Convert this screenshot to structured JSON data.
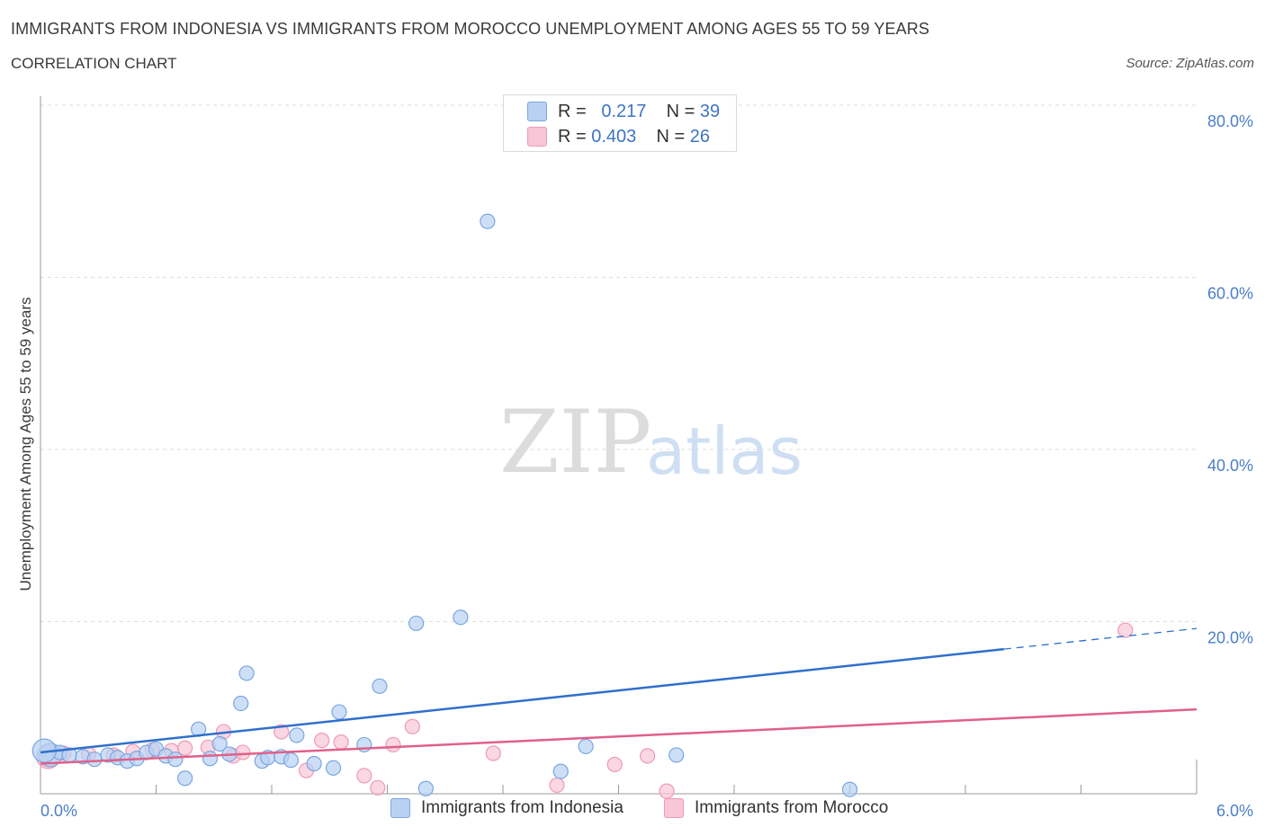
{
  "title": "IMMIGRANTS FROM INDONESIA VS IMMIGRANTS FROM MOROCCO UNEMPLOYMENT AMONG AGES 55 TO 59 YEARS",
  "subtitle": "CORRELATION CHART",
  "source": "Source: ZipAtlas.com",
  "watermark": {
    "zip": "ZIP",
    "atlas": "atlas"
  },
  "legend": {
    "r_label": "R =",
    "n_label": "N =",
    "rows": [
      {
        "r": "0.217",
        "n": "39"
      },
      {
        "r": "0.403",
        "n": "26"
      }
    ]
  },
  "colors": {
    "indonesia_fill": "#b8d1f3",
    "indonesia_stroke": "#7aa6e0",
    "indonesia_line": "#2f6fcd",
    "morocco_fill": "#f8c6d6",
    "morocco_stroke": "#ee9ab5",
    "morocco_line": "#e0608a"
  },
  "chart_data": {
    "type": "scatter",
    "title": "IMMIGRANTS FROM INDONESIA VS IMMIGRANTS FROM MOROCCO UNEMPLOYMENT AMONG AGES 55 TO 59 YEARS",
    "xlabel": "",
    "ylabel": "Unemployment Among Ages 55 to 59 years",
    "xlim": [
      0,
      6
    ],
    "ylim": [
      0,
      80
    ],
    "x_tick_labels": [
      "0.0%",
      "6.0%"
    ],
    "y_ticks": [
      20,
      40,
      60,
      80
    ],
    "y_tick_labels": [
      "20.0%",
      "40.0%",
      "60.0%",
      "80.0%"
    ],
    "grid": true,
    "series": [
      {
        "name": "Immigrants from Indonesia",
        "points": [
          [
            0.05,
            4.5
          ],
          [
            0.1,
            4.8
          ],
          [
            0.15,
            4.5
          ],
          [
            0.22,
            4.3
          ],
          [
            0.28,
            4.0
          ],
          [
            0.35,
            4.5
          ],
          [
            0.4,
            4.2
          ],
          [
            0.45,
            3.8
          ],
          [
            0.5,
            4.1
          ],
          [
            0.55,
            4.8
          ],
          [
            0.6,
            5.2
          ],
          [
            0.65,
            4.4
          ],
          [
            0.7,
            4.0
          ],
          [
            0.75,
            1.8
          ],
          [
            0.82,
            7.5
          ],
          [
            0.88,
            4.1
          ],
          [
            0.93,
            5.8
          ],
          [
            0.98,
            4.6
          ],
          [
            1.04,
            10.5
          ],
          [
            1.07,
            14.0
          ],
          [
            1.15,
            3.8
          ],
          [
            1.18,
            4.2
          ],
          [
            1.25,
            4.3
          ],
          [
            1.3,
            3.9
          ],
          [
            1.33,
            6.8
          ],
          [
            1.42,
            3.5
          ],
          [
            1.52,
            3.0
          ],
          [
            1.55,
            9.5
          ],
          [
            1.68,
            5.7
          ],
          [
            1.76,
            12.5
          ],
          [
            1.95,
            19.8
          ],
          [
            2.0,
            0.6
          ],
          [
            2.18,
            20.5
          ],
          [
            2.32,
            66.5
          ],
          [
            2.7,
            2.6
          ],
          [
            2.83,
            5.5
          ],
          [
            3.3,
            4.5
          ],
          [
            4.2,
            0.5
          ],
          [
            0.02,
            5.0
          ]
        ]
      },
      {
        "name": "Immigrants from Morocco",
        "points": [
          [
            0.04,
            4.3
          ],
          [
            0.12,
            4.7
          ],
          [
            0.25,
            4.6
          ],
          [
            0.38,
            4.5
          ],
          [
            0.48,
            4.9
          ],
          [
            0.58,
            5.1
          ],
          [
            0.68,
            5.0
          ],
          [
            0.75,
            5.3
          ],
          [
            0.87,
            5.4
          ],
          [
            0.95,
            7.2
          ],
          [
            1.0,
            4.4
          ],
          [
            1.05,
            4.8
          ],
          [
            1.25,
            7.2
          ],
          [
            1.38,
            2.7
          ],
          [
            1.46,
            6.2
          ],
          [
            1.56,
            6.0
          ],
          [
            1.68,
            2.1
          ],
          [
            1.75,
            0.7
          ],
          [
            1.83,
            5.7
          ],
          [
            1.93,
            7.8
          ],
          [
            2.35,
            4.7
          ],
          [
            2.68,
            1.0
          ],
          [
            2.98,
            3.4
          ],
          [
            3.15,
            4.4
          ],
          [
            3.25,
            0.3
          ],
          [
            5.63,
            19.0
          ]
        ]
      }
    ],
    "trend_lines": [
      {
        "name": "Immigrants from Indonesia",
        "x": [
          0.0,
          5.0
        ],
        "y": [
          4.8,
          16.8
        ],
        "dashed_extension": [
          5.0,
          6.0
        ]
      },
      {
        "name": "Immigrants from Morocco",
        "x": [
          0.0,
          6.0
        ],
        "y": [
          3.5,
          9.8
        ]
      }
    ],
    "legend": [
      "Immigrants from Indonesia",
      "Immigrants from Morocco"
    ],
    "legend_position": "top-center"
  }
}
